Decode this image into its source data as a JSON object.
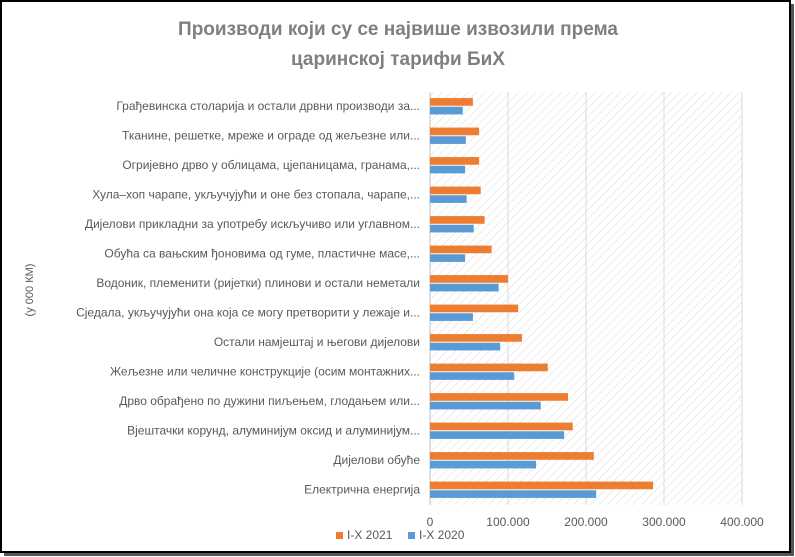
{
  "chart_data": {
    "type": "hbar",
    "title": [
      "Производи који су се највише извозили  према",
      "царинској тарифи БиХ"
    ],
    "y_label": "(у 000 КМ)",
    "categories": [
      "Грађевинска столарија и остали дрвни производи за...",
      "Тканине, решетке, мреже и ограде од жељезне или...",
      "Огријевно дрво у облицама, цјепаницама, гранама,...",
      "Хула–хоп чарапе, укључујући и оне без стопала, чарапе,...",
      "Дијелови прикладни за употребу искључиво или углавном...",
      "Обућа са вањским ђоновима од гуме, пластичне масе,...",
      "Водоник, племенити (ријетки) плинови и остали неметали",
      "Сједала, укључујући она која се могу претворити у лежаје и...",
      "Остали намјештај и његови дијелови",
      "Жељезне или челичне конструкције (осим монтажних...",
      "Дрво обрађено по дужини пиљењем, глодањем или...",
      "Вјештачки корунд, алуминијум оксид и алуминијум...",
      "Дијелови обуће",
      "Електрична енергија"
    ],
    "series": [
      {
        "name": "I-X 2021",
        "color": "#ed7d31",
        "values": [
          55000,
          63000,
          63000,
          65000,
          70000,
          79000,
          100000,
          113000,
          118000,
          151000,
          177000,
          183000,
          210000,
          286000
        ]
      },
      {
        "name": "I-X 2020",
        "color": "#5b9bd5",
        "values": [
          42000,
          46000,
          45000,
          47000,
          56000,
          45000,
          88000,
          55000,
          90000,
          108000,
          142000,
          172000,
          136000,
          213000
        ]
      }
    ],
    "xlim": [
      0,
      400000
    ],
    "xticks": [
      0,
      {
        "value": 100000,
        "label": "100.000"
      },
      {
        "value": 200000,
        "label": "200.000"
      },
      {
        "value": 300000,
        "label": "300.000"
      },
      {
        "value": 400000,
        "label": "400.000"
      }
    ],
    "grid": true,
    "legend": "bottom"
  }
}
